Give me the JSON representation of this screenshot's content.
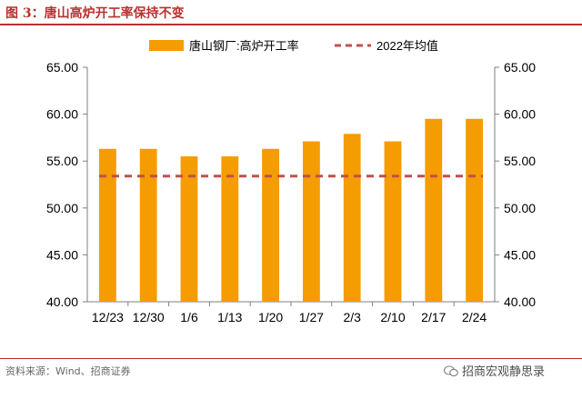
{
  "figure": {
    "title": "图 3：唐山高炉开工率保持不变",
    "source": "资料来源：Wind、招商证券",
    "watermark": "招商宏观静思录"
  },
  "colors": {
    "bar": "#f59c00",
    "avg_line": "#c0504d",
    "title": "#b8312f",
    "axis": "#7f7f7f",
    "text": "#000000"
  },
  "chart_data": {
    "type": "bar",
    "categories": [
      "12/23",
      "12/30",
      "1/6",
      "1/13",
      "1/20",
      "1/27",
      "2/3",
      "2/10",
      "2/17",
      "2/24"
    ],
    "series": [
      {
        "name": "唐山钢厂:高炉开工率",
        "type": "bar",
        "values": [
          56.3,
          56.3,
          55.5,
          55.5,
          56.3,
          57.1,
          57.9,
          57.1,
          59.5,
          59.5
        ]
      },
      {
        "name": "2022年均值",
        "type": "line-dashed",
        "values": [
          53.4,
          53.4,
          53.4,
          53.4,
          53.4,
          53.4,
          53.4,
          53.4,
          53.4,
          53.4
        ]
      }
    ],
    "ylim": [
      40,
      65
    ],
    "yticks": [
      "40.00",
      "45.00",
      "50.00",
      "55.00",
      "60.00",
      "65.00"
    ],
    "y2ticks": [
      "40.00",
      "45.00",
      "50.00",
      "55.00",
      "60.00",
      "65.00"
    ],
    "legend": "top-center",
    "grid": false
  }
}
